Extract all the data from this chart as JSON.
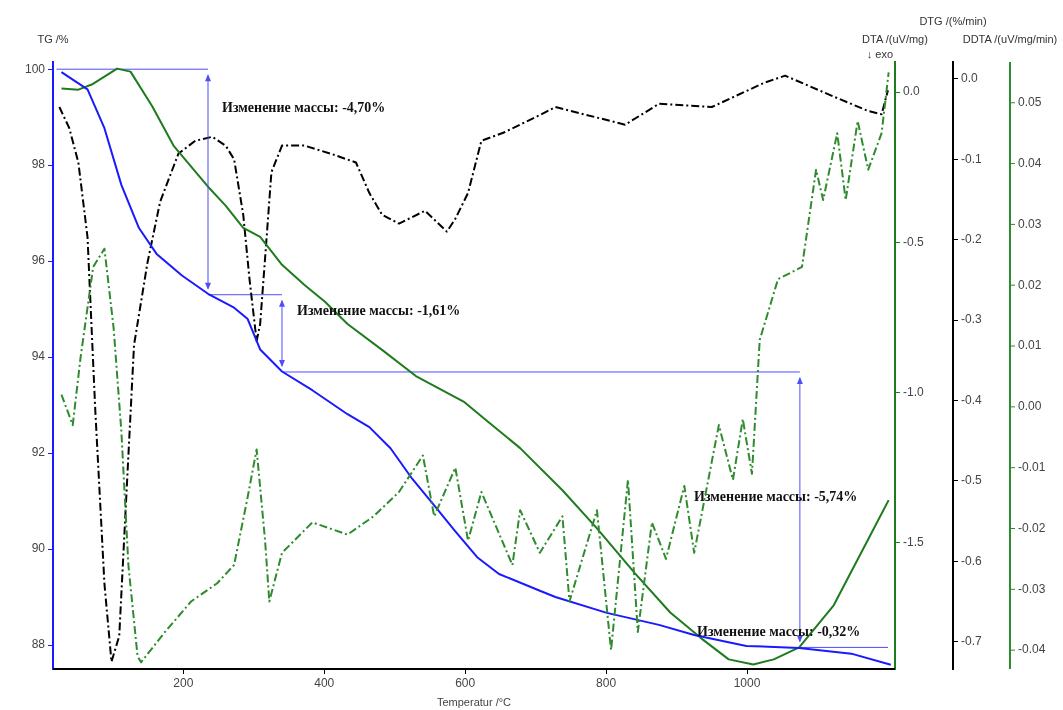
{
  "chart_data": [
    {
      "type": "line",
      "xlabel": "Temperatur /°C",
      "ylabel": "TG /%",
      "y2label": "DTA /(uV/mg)",
      "y3label": "DTG /(%/min)",
      "xlim": [
        15,
        1210
      ],
      "xticks": [
        200,
        400,
        600,
        800,
        1000
      ],
      "ylim": [
        87.5,
        100.15
      ],
      "yticks": [
        88,
        90,
        92,
        94,
        96,
        98,
        100
      ],
      "y2lim": [
        -1.92,
        0.1
      ],
      "y2ticks": [
        {
          "value": 0,
          "label": "0.0"
        },
        -0.5,
        {
          "value": -1,
          "label": "-1.0"
        },
        -1.5
      ],
      "y3lim": [
        -0.734,
        0.021
      ],
      "y3ticks": [
        {
          "value": 0,
          "label": "0.0"
        },
        -0.1,
        -0.2,
        -0.3,
        -0.4,
        -0.5,
        -0.6,
        -0.7
      ],
      "marker": "none",
      "annotations": [
        "↓ exo",
        "Изменение массы: -4,70%",
        "Изменение массы: -1,61%",
        "Изменение массы: -5,74%",
        "Изменение массы: -0,32%"
      ],
      "series": [
        {
          "color": "#1a1aff",
          "axis": "y",
          "x": [
            27,
            64,
            88,
            112,
            137,
            162,
            198,
            235,
            272,
            291,
            309,
            340,
            383,
            433,
            464,
            494,
            525,
            556,
            586,
            617,
            648,
            706,
            728,
            801,
            875,
            925,
            999,
            1074,
            1148,
            1204
          ],
          "values": [
            99.94,
            99.58,
            98.77,
            97.59,
            96.69,
            96.15,
            95.7,
            95.32,
            95.03,
            94.8,
            94.16,
            93.7,
            93.31,
            92.81,
            92.54,
            92.1,
            91.46,
            90.91,
            90.37,
            89.83,
            89.48,
            89.13,
            89.0,
            88.67,
            88.42,
            88.21,
            87.98,
            87.94,
            87.82,
            87.59
          ]
        },
        {
          "color": "#1e7b1e",
          "axis": "y2",
          "x": [
            27,
            51,
            70,
            106,
            125,
            156,
            186,
            217,
            235,
            260,
            285,
            309,
            340,
            372,
            401,
            433,
            482,
            530,
            599,
            635,
            678,
            738,
            787,
            841,
            891,
            935,
            974,
            1009,
            1038,
            1074,
            1123,
            1172,
            1201
          ],
          "values": [
            0.012,
            0.008,
            0.025,
            0.078,
            0.068,
            -0.048,
            -0.178,
            -0.265,
            -0.315,
            -0.378,
            -0.452,
            -0.482,
            -0.575,
            -0.642,
            -0.698,
            -0.772,
            -0.858,
            -0.945,
            -1.032,
            -1.102,
            -1.185,
            -1.325,
            -1.452,
            -1.602,
            -1.732,
            -1.818,
            -1.888,
            -1.905,
            -1.888,
            -1.848,
            -1.708,
            -1.488,
            -1.358
          ]
        },
        {
          "color": "#000000",
          "axis": "y3",
          "line_style": "dashed",
          "x": [
            24,
            38,
            51,
            64,
            75,
            88,
            98,
            109,
            119,
            130,
            149,
            167,
            193,
            217,
            241,
            260,
            272,
            285,
            294,
            304,
            309,
            316,
            325,
            340,
            372,
            409,
            445,
            464,
            482,
            506,
            543,
            574,
            586,
            604,
            623,
            654,
            706,
            728,
            827,
            875,
            950,
            1024,
            1054,
            1123,
            1172,
            1191,
            1200
          ],
          "values": [
            -0.035,
            -0.061,
            -0.104,
            -0.197,
            -0.412,
            -0.628,
            -0.725,
            -0.693,
            -0.52,
            -0.331,
            -0.229,
            -0.153,
            -0.093,
            -0.077,
            -0.072,
            -0.083,
            -0.1,
            -0.169,
            -0.25,
            -0.326,
            -0.305,
            -0.223,
            -0.116,
            -0.083,
            -0.083,
            -0.093,
            -0.104,
            -0.142,
            -0.169,
            -0.18,
            -0.164,
            -0.19,
            -0.174,
            -0.142,
            -0.077,
            -0.067,
            -0.045,
            -0.035,
            -0.057,
            -0.031,
            -0.035,
            -0.005,
            0.004,
            -0.022,
            -0.04,
            -0.044,
            -0.014
          ]
        },
        {
          "color": "#4d4dff",
          "axis": "y",
          "x": [
            20,
            235
          ],
          "values": [
            100,
            100
          ]
        },
        {
          "color": "#4d4dff",
          "axis": "y",
          "x": [
            235,
            340
          ],
          "values": [
            95.3,
            95.3
          ]
        },
        {
          "color": "#4d4dff",
          "axis": "y",
          "x": [
            340,
            1075
          ],
          "values": [
            93.69,
            93.69
          ]
        },
        {
          "color": "#4d4dff",
          "axis": "y",
          "x": [
            1075,
            1200
          ],
          "values": [
            87.95,
            87.95
          ]
        }
      ]
    },
    {
      "type": "line",
      "ylabel": "DDTA /(uV/mg/min)",
      "xlim": [
        15,
        1210
      ],
      "tick_labels": "y",
      "marker": "none",
      "ylim": [
        -0.0431,
        0.0567
      ],
      "yticks": [
        0.05,
        0.04,
        0.03,
        0.02,
        0.01,
        {
          "value": 0,
          "label": "0.00"
        },
        -0.01,
        -0.02,
        -0.03,
        -0.04
      ],
      "series": [
        {
          "color": "#2e8b2e",
          "line_style": "dashed",
          "x": [
            27,
            43,
            54,
            72,
            88,
            101,
            112,
            122,
            135,
            140,
            174,
            211,
            248,
            272,
            291,
            304,
            316,
            322,
            340,
            383,
            433,
            470,
            506,
            540,
            556,
            586,
            604,
            623,
            667,
            678,
            706,
            738,
            748,
            787,
            807,
            831,
            845,
            865,
            885,
            911,
            925,
            960,
            980,
            994,
            1007,
            1018,
            1044,
            1078,
            1098,
            1108,
            1128,
            1140,
            1157,
            1172,
            1191,
            1201
          ],
          "values": [
            0.002,
            -0.003,
            0.008,
            0.023,
            0.026,
            0.013,
            -0.004,
            -0.026,
            -0.041,
            -0.042,
            -0.037,
            -0.032,
            -0.029,
            -0.026,
            -0.015,
            -0.007,
            -0.022,
            -0.032,
            -0.024,
            -0.019,
            -0.021,
            -0.018,
            -0.014,
            -0.008,
            -0.018,
            -0.01,
            -0.022,
            -0.014,
            -0.026,
            -0.017,
            -0.024,
            -0.018,
            -0.032,
            -0.017,
            -0.04,
            -0.012,
            -0.037,
            -0.019,
            -0.025,
            -0.013,
            -0.024,
            -0.003,
            -0.012,
            -0.002,
            -0.011,
            0.011,
            0.021,
            0.023,
            0.039,
            0.034,
            0.045,
            0.034,
            0.047,
            0.039,
            0.045,
            0.055
          ]
        }
      ]
    }
  ]
}
